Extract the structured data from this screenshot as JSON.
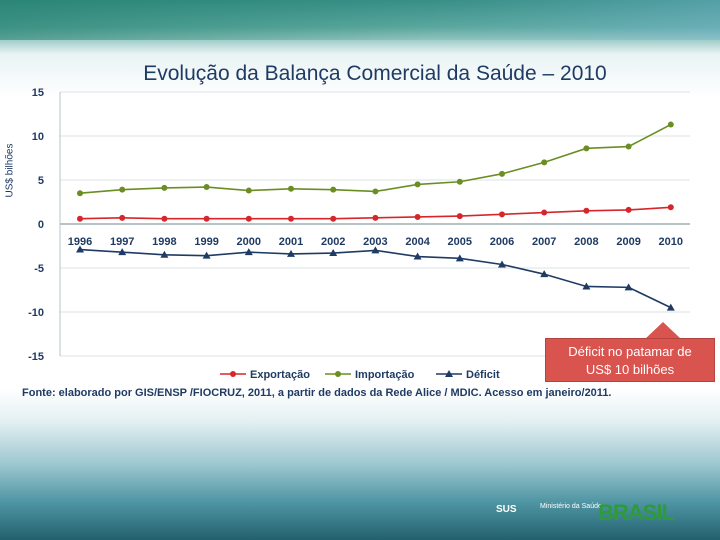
{
  "title": "Evolução da Balança Comercial da Saúde – 2010",
  "callout": {
    "line1": "Déficit no patamar de",
    "line2": "US$ 10 bilhões"
  },
  "source": "Fonte: elaborado por GIS/ENSP /FIOCRUZ, 2011, a partir de dados da Rede Alice / MDIC. Acesso em janeiro/2011.",
  "footer": {
    "sus": "SUS",
    "ministerio": "Ministério da Saúde",
    "brasil": "BRASIL"
  },
  "chart_data": {
    "type": "line",
    "title": "Evolução da Balança Comercial da Saúde – 2010",
    "ylabel": "US$ bilhões",
    "xlabel": "",
    "ylim": [
      -15,
      15
    ],
    "yticks": [
      15,
      10,
      5,
      0,
      -5,
      -10,
      -15
    ],
    "categories": [
      "1996",
      "1997",
      "1998",
      "1999",
      "2000",
      "2001",
      "2002",
      "2003",
      "2004",
      "2005",
      "2006",
      "2007",
      "2008",
      "2009",
      "2010"
    ],
    "grid": true,
    "legend": "bottom",
    "series": [
      {
        "name": "Exportação",
        "color": "#d7262b",
        "marker": "circle",
        "values": [
          0.6,
          0.7,
          0.6,
          0.6,
          0.6,
          0.6,
          0.6,
          0.7,
          0.8,
          0.9,
          1.1,
          1.3,
          1.5,
          1.6,
          1.9
        ]
      },
      {
        "name": "Importação",
        "color": "#6b8e23",
        "marker": "circle",
        "values": [
          3.5,
          3.9,
          4.1,
          4.2,
          3.8,
          4.0,
          3.9,
          3.7,
          4.5,
          4.8,
          5.7,
          7.0,
          8.6,
          8.8,
          11.3
        ]
      },
      {
        "name": "Déficit",
        "color": "#1f3b64",
        "marker": "triangle",
        "values": [
          -2.9,
          -3.2,
          -3.5,
          -3.6,
          -3.2,
          -3.4,
          -3.3,
          -3.0,
          -3.7,
          -3.9,
          -4.6,
          -5.7,
          -7.1,
          -7.2,
          -9.5
        ]
      }
    ]
  }
}
